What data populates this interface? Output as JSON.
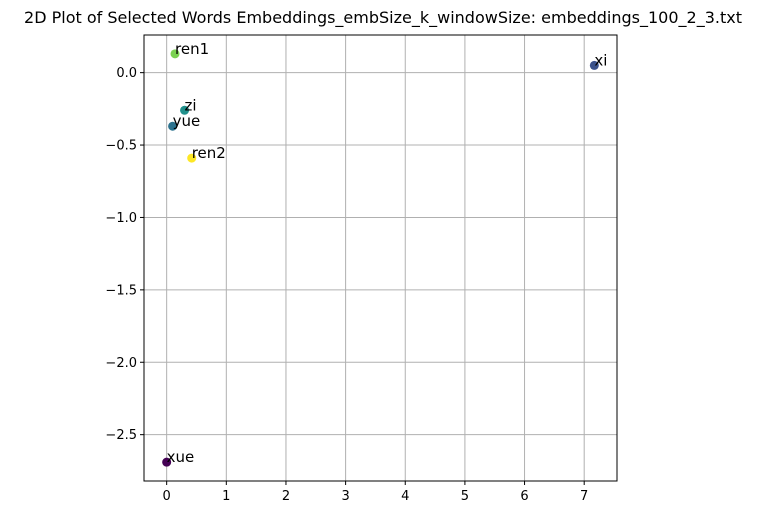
{
  "chart_data": {
    "type": "scatter",
    "title": "2D Plot of Selected Words Embeddings_embSize_k_windowSize: embeddings_100_2_3.txt",
    "xlabel": "",
    "ylabel": "",
    "xlim": [
      -0.38,
      7.55
    ],
    "ylim": [
      -2.82,
      0.26
    ],
    "xticks": [
      0,
      1,
      2,
      3,
      4,
      5,
      6,
      7
    ],
    "yticks": [
      0.0,
      -0.5,
      -1.0,
      -1.5,
      -2.0,
      -2.5
    ],
    "xtick_labels": [
      "0",
      "1",
      "2",
      "3",
      "4",
      "5",
      "6",
      "7"
    ],
    "ytick_labels": [
      "0.0",
      "−0.5",
      "−1.0",
      "−1.5",
      "−2.0",
      "−2.5"
    ],
    "grid": true,
    "points": [
      {
        "label": "xue",
        "x": 0.0,
        "y": -2.69,
        "color": "#440154"
      },
      {
        "label": "xi",
        "x": 7.17,
        "y": 0.05,
        "color": "#3b528b"
      },
      {
        "label": "yue",
        "x": 0.1,
        "y": -0.37,
        "color": "#2c728e"
      },
      {
        "label": "zi",
        "x": 0.3,
        "y": -0.26,
        "color": "#21918c"
      },
      {
        "label": "ren1",
        "x": 0.14,
        "y": 0.13,
        "color": "#7ad151"
      },
      {
        "label": "ren2",
        "x": 0.42,
        "y": -0.59,
        "color": "#fde725"
      }
    ]
  }
}
